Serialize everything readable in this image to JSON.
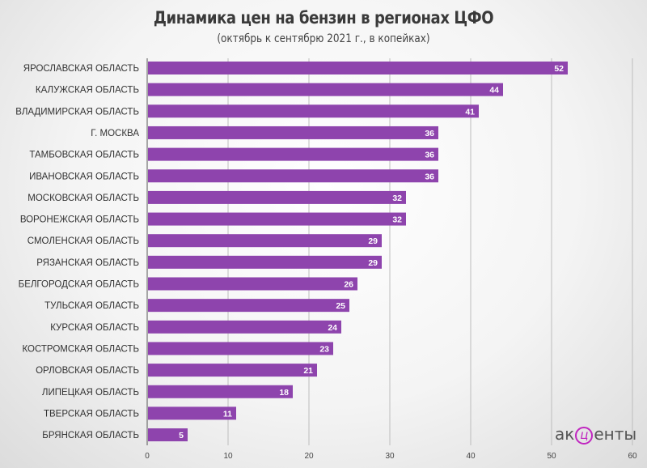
{
  "chart_data": {
    "type": "bar",
    "orientation": "horizontal",
    "title": "Динамика цен на бензин в регионах ЦФО",
    "subtitle": "(октябрь к сентябрю 2021 г., в копейках)",
    "categories": [
      "ЯРОСЛАВСКАЯ ОБЛАСТЬ",
      "КАЛУЖСКАЯ ОБЛАСТЬ",
      "ВЛАДИМИРСКАЯ ОБЛАСТЬ",
      "Г. МОСКВА",
      "ТАМБОВСКАЯ ОБЛАСТЬ",
      "ИВАНОВСКАЯ ОБЛАСТЬ",
      "МОСКОВСКАЯ ОБЛАСТЬ",
      "ВОРОНЕЖСКАЯ ОБЛАСТЬ",
      "СМОЛЕНСКАЯ ОБЛАСТЬ",
      "РЯЗАНСКАЯ ОБЛАСТЬ",
      "БЕЛГОРОДСКАЯ ОБЛАСТЬ",
      "ТУЛЬСКАЯ ОБЛАСТЬ",
      "КУРСКАЯ ОБЛАСТЬ",
      "КОСТРОМСКАЯ ОБЛАСТЬ",
      "ОРЛОВСКАЯ ОБЛАСТЬ",
      "ЛИПЕЦКАЯ ОБЛАСТЬ",
      "ТВЕРСКАЯ ОБЛАСТЬ",
      "БРЯНСКАЯ ОБЛАСТЬ"
    ],
    "values": [
      52,
      44,
      41,
      36,
      36,
      36,
      32,
      32,
      29,
      29,
      26,
      25,
      24,
      23,
      21,
      18,
      11,
      5
    ],
    "xlim": [
      0,
      60
    ],
    "xticks": [
      0,
      10,
      20,
      30,
      40,
      50,
      60
    ],
    "grid": true,
    "bar_color": "#8e44ad"
  },
  "logo": {
    "a": "ак",
    "c": "ц",
    "b": "енты"
  }
}
